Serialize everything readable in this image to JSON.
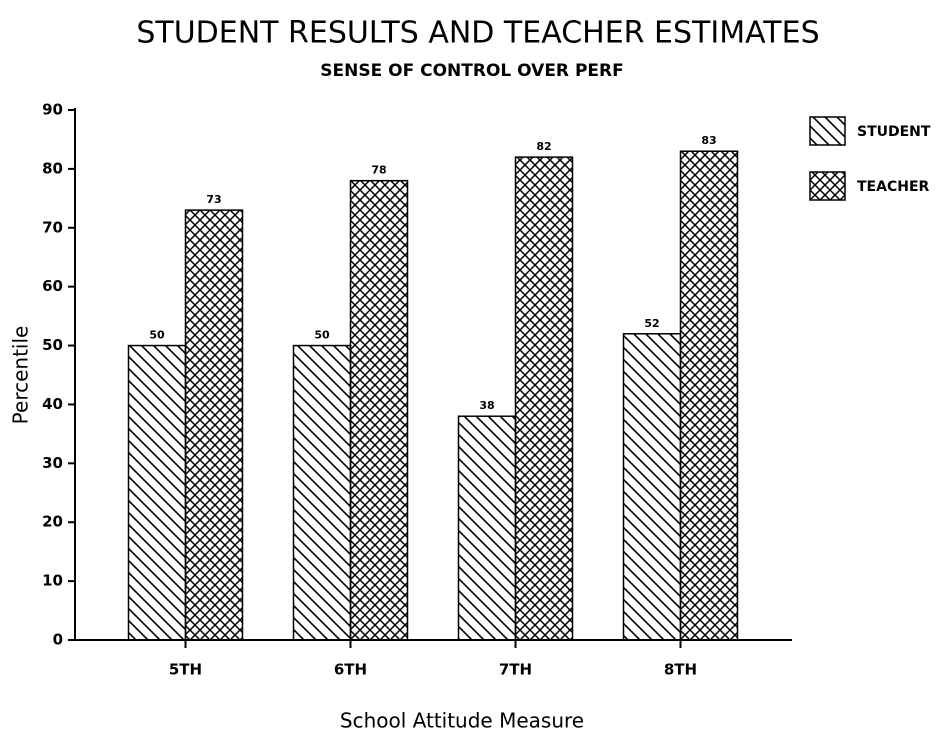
{
  "chart_data": {
    "type": "bar",
    "title": "STUDENT RESULTS AND TEACHER ESTIMATES",
    "subtitle": "SENSE OF CONTROL OVER PERF",
    "x_label": "School Attitude Measure",
    "y_label": "Percentile",
    "categories": [
      "5TH",
      "6TH",
      "7TH",
      "8TH"
    ],
    "series": [
      {
        "name": "STUDENT",
        "color": "#000000",
        "pattern": "diagonal",
        "values": [
          50,
          50,
          38,
          52
        ]
      },
      {
        "name": "TEACHER",
        "color": "#000000",
        "pattern": "crosshatch",
        "values": [
          73,
          78,
          82,
          83
        ]
      }
    ],
    "ylim": [
      0,
      90
    ],
    "yticks": [
      0,
      10,
      20,
      30,
      40,
      50,
      60,
      70,
      80,
      90
    ],
    "legend": "right"
  }
}
